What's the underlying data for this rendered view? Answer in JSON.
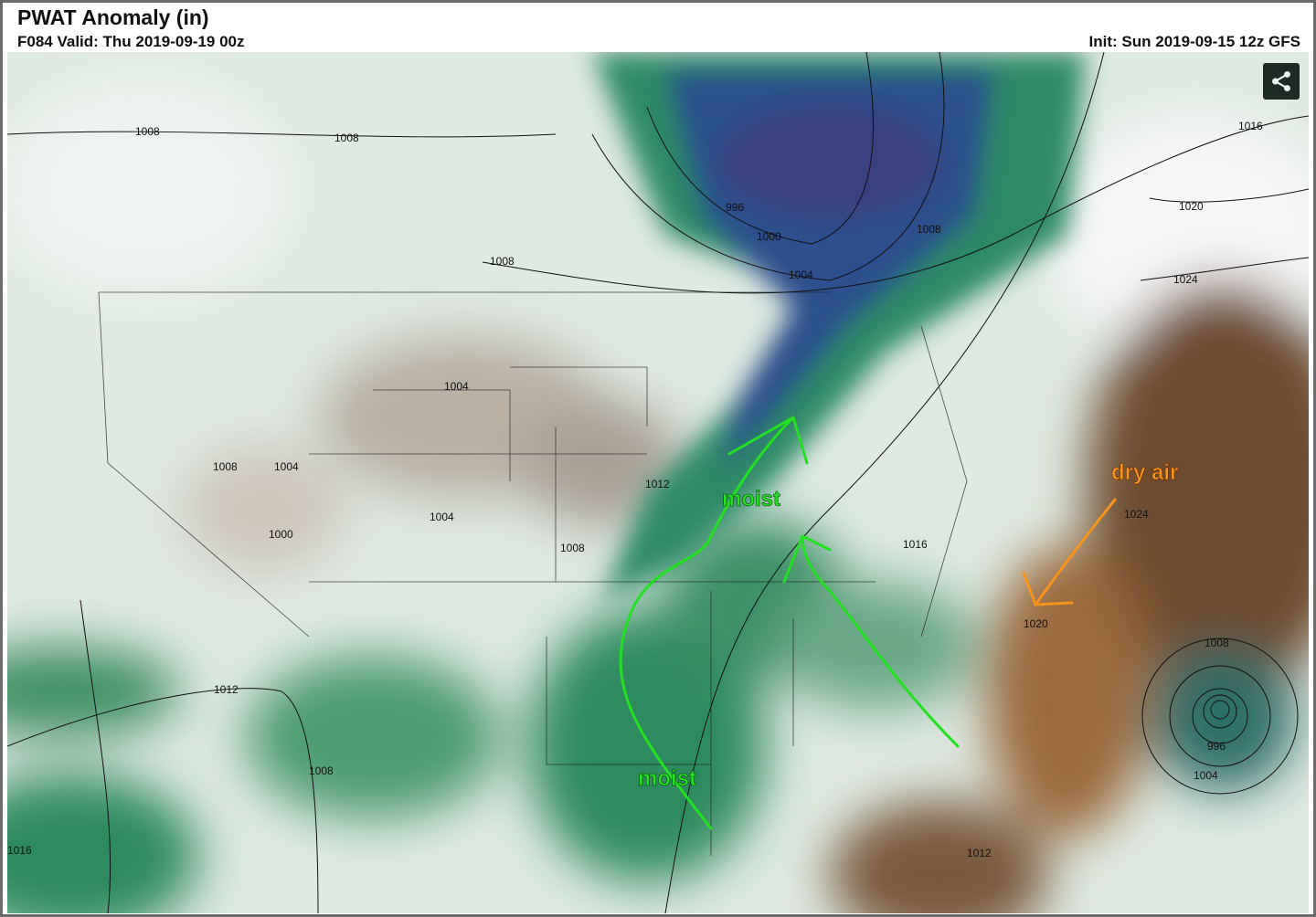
{
  "header": {
    "title": "PWAT Anomaly (in)",
    "valid": "F084 Valid: Thu 2019-09-19 00z",
    "init": "Init: Sun 2019-09-15 12z GFS"
  },
  "share_icon": "share-icon",
  "colors": {
    "moist_green": "#2e8a5e",
    "very_moist_blue": "#2c4f8a",
    "dry_brown": "#7a5434",
    "annotation_green": "#22e022",
    "annotation_orange": "#f7941d"
  },
  "isobar_labels": [
    "1008",
    "1008",
    "1008",
    "996",
    "1000",
    "1004",
    "1008",
    "1016",
    "1020",
    "1024",
    "1004",
    "1012",
    "1008",
    "1004",
    "1000",
    "1004",
    "1008",
    "1016",
    "1024",
    "1020",
    "1012",
    "1008",
    "1012",
    "1016",
    "1008",
    "996",
    "1004"
  ],
  "annotations": {
    "moist_north": "moist",
    "moist_south": "moist",
    "dry_air": "dry air"
  }
}
